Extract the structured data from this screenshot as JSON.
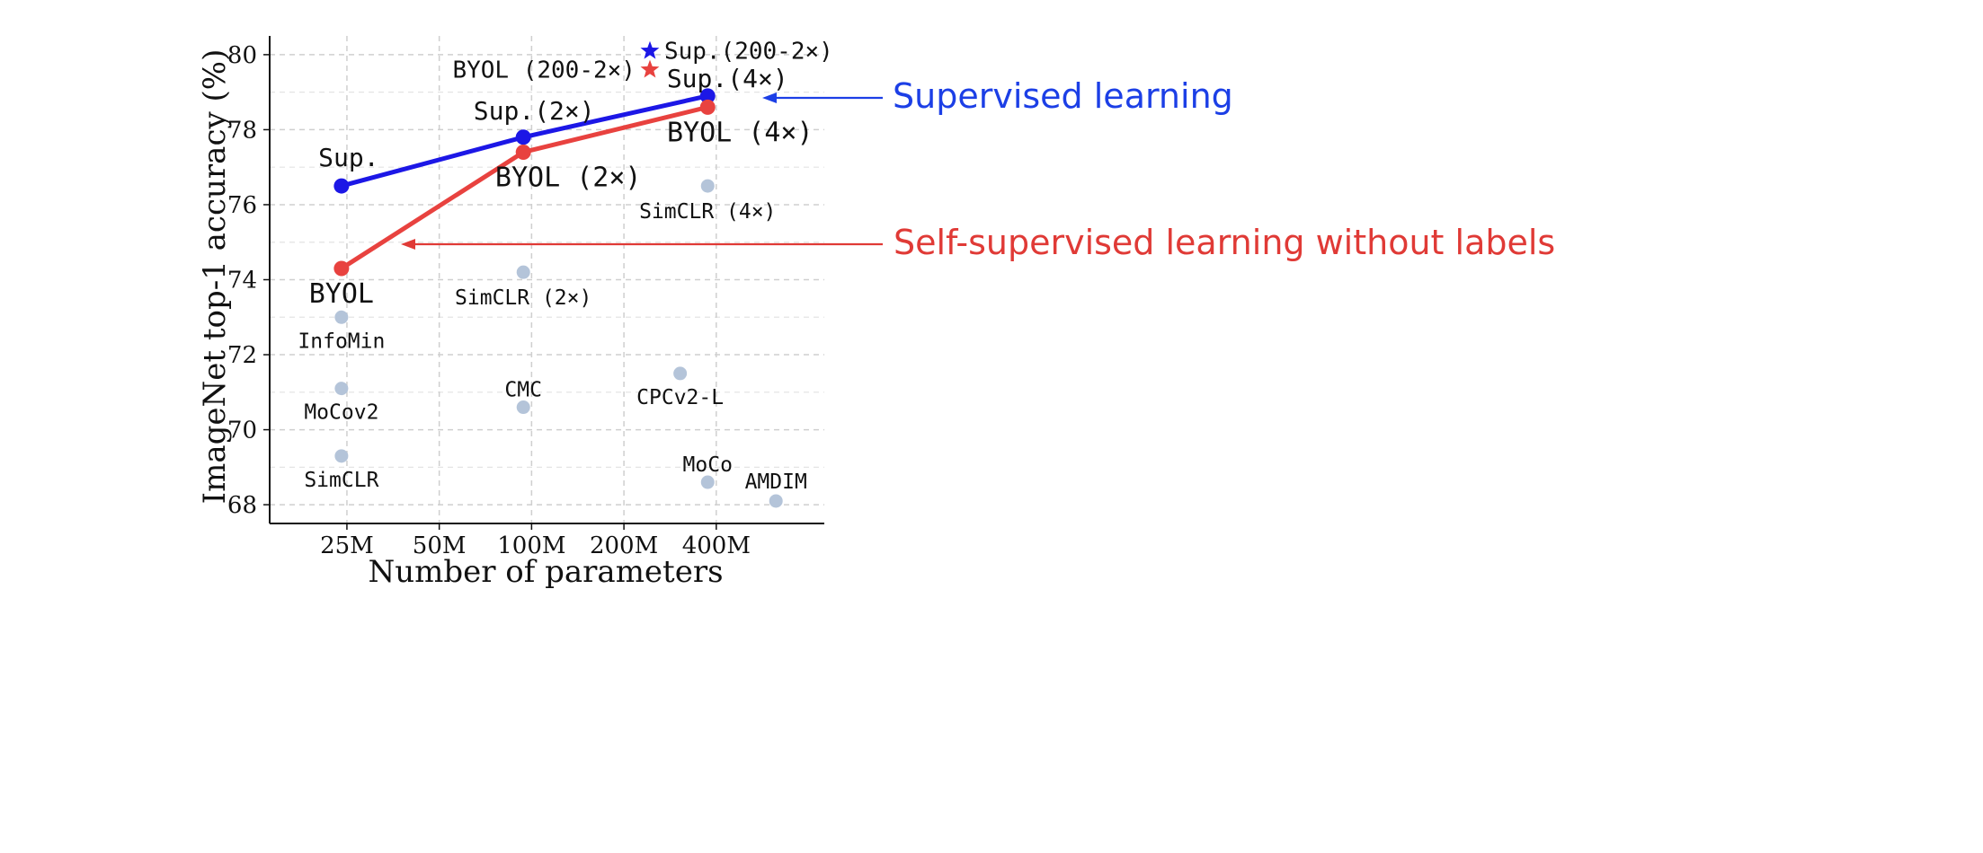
{
  "chart_data": {
    "type": "scatter",
    "xlabel": "Number of parameters",
    "ylabel": "ImageNet top-1 accuracy (%)",
    "x_scale": "log",
    "xticks": [
      {
        "value": 25,
        "label": "25M"
      },
      {
        "value": 50,
        "label": "50M"
      },
      {
        "value": 100,
        "label": "100M"
      },
      {
        "value": 200,
        "label": "200M"
      },
      {
        "value": 400,
        "label": "400M"
      }
    ],
    "xlim": [
      14,
      900
    ],
    "yticks": [
      68,
      70,
      72,
      74,
      76,
      78,
      80
    ],
    "ylim": [
      67.5,
      80.5
    ],
    "grid": true,
    "series": [
      {
        "role": "supervised",
        "color": "#1c17e6",
        "points": [
          {
            "x": 24,
            "y": 76.5,
            "label": "Sup."
          },
          {
            "x": 94,
            "y": 77.8,
            "label": "Sup.(2×)"
          },
          {
            "x": 375,
            "y": 78.9,
            "label": "Sup.(4×)"
          }
        ]
      },
      {
        "role": "self-supervised",
        "color": "#e8423f",
        "points": [
          {
            "x": 24,
            "y": 74.3,
            "label": "BYOL"
          },
          {
            "x": 94,
            "y": 77.4,
            "label": "BYOL (2×)"
          },
          {
            "x": 375,
            "y": 78.6,
            "label": "BYOL (4×)"
          }
        ]
      },
      {
        "role": "baselines",
        "color": "#b4c4d9",
        "points": [
          {
            "x": 24,
            "y": 73.0,
            "label": "InfoMin"
          },
          {
            "x": 24,
            "y": 71.1,
            "label": "MoCov2"
          },
          {
            "x": 24,
            "y": 69.3,
            "label": "SimCLR"
          },
          {
            "x": 94,
            "y": 74.2,
            "label": "SimCLR (2×)"
          },
          {
            "x": 94,
            "y": 70.6,
            "label": "CMC"
          },
          {
            "x": 375,
            "y": 76.5,
            "label": "SimCLR (4×)"
          },
          {
            "x": 305,
            "y": 71.5,
            "label": "CPCv2-L"
          },
          {
            "x": 375,
            "y": 68.6,
            "label": "MoCo"
          },
          {
            "x": 626,
            "y": 68.1,
            "label": "AMDIM"
          }
        ]
      }
    ],
    "stars": [
      {
        "x": 243,
        "y": 80.1,
        "color": "#1c17e6",
        "label": "Sup.(200-2×)"
      },
      {
        "x": 243,
        "y": 79.6,
        "color": "#e8423f",
        "label": "BYOL (200-2×)"
      }
    ],
    "callouts": [
      {
        "text": "Supervised learning",
        "color": "#1c3fe6"
      },
      {
        "text": "Self-supervised learning without labels",
        "color": "#e03a36"
      }
    ]
  }
}
